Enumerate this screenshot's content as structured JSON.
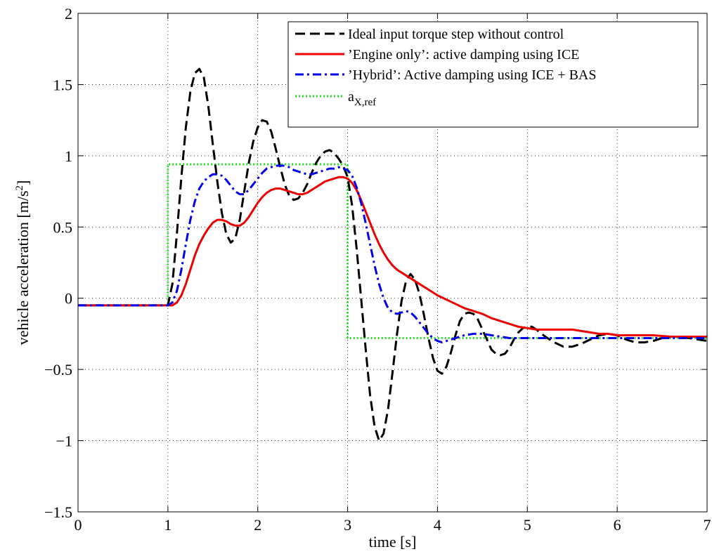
{
  "chart_data": {
    "type": "line",
    "xlabel": "time [s]",
    "ylabel": "vehicle acceleration [m/s",
    "ylabel_sup": "2",
    "ylabel_end": "]",
    "xlim": [
      0,
      7
    ],
    "ylim": [
      -1.5,
      2
    ],
    "xticks": [
      0,
      1,
      2,
      3,
      4,
      5,
      6,
      7
    ],
    "xtick_labels": [
      "0",
      "1",
      "2",
      "3",
      "4",
      "5",
      "6",
      "7"
    ],
    "yticks": [
      -1.5,
      -1,
      -0.5,
      0,
      0.5,
      1,
      1.5,
      2
    ],
    "ytick_labels": [
      "−1.5",
      "−1",
      "−0.5",
      "0",
      "0.5",
      "1",
      "1.5",
      "2"
    ],
    "grid": true,
    "legend_position": "top-right",
    "series": [
      {
        "name": "Ideal input torque step without control",
        "color": "#000000",
        "style": "dashed",
        "points": [
          [
            0,
            -0.05
          ],
          [
            1.0,
            -0.05
          ],
          [
            1.05,
            0.1
          ],
          [
            1.1,
            0.45
          ],
          [
            1.15,
            0.85
          ],
          [
            1.2,
            1.2
          ],
          [
            1.25,
            1.45
          ],
          [
            1.3,
            1.58
          ],
          [
            1.35,
            1.61
          ],
          [
            1.4,
            1.55
          ],
          [
            1.45,
            1.35
          ],
          [
            1.5,
            1.08
          ],
          [
            1.55,
            0.82
          ],
          [
            1.6,
            0.6
          ],
          [
            1.65,
            0.45
          ],
          [
            1.7,
            0.39
          ],
          [
            1.75,
            0.42
          ],
          [
            1.8,
            0.55
          ],
          [
            1.85,
            0.75
          ],
          [
            1.9,
            0.95
          ],
          [
            1.95,
            1.1
          ],
          [
            2.0,
            1.2
          ],
          [
            2.05,
            1.25
          ],
          [
            2.1,
            1.24
          ],
          [
            2.15,
            1.17
          ],
          [
            2.2,
            1.05
          ],
          [
            2.25,
            0.92
          ],
          [
            2.3,
            0.8
          ],
          [
            2.35,
            0.72
          ],
          [
            2.4,
            0.69
          ],
          [
            2.45,
            0.7
          ],
          [
            2.5,
            0.74
          ],
          [
            2.55,
            0.8
          ],
          [
            2.6,
            0.88
          ],
          [
            2.65,
            0.95
          ],
          [
            2.7,
            1.0
          ],
          [
            2.75,
            1.03
          ],
          [
            2.8,
            1.04
          ],
          [
            2.85,
            1.02
          ],
          [
            2.9,
            0.98
          ],
          [
            2.95,
            0.93
          ],
          [
            3.0,
            0.85
          ],
          [
            3.05,
            0.65
          ],
          [
            3.1,
            0.35
          ],
          [
            3.15,
            0.0
          ],
          [
            3.2,
            -0.35
          ],
          [
            3.25,
            -0.68
          ],
          [
            3.3,
            -0.9
          ],
          [
            3.35,
            -1.0
          ],
          [
            3.4,
            -0.95
          ],
          [
            3.45,
            -0.78
          ],
          [
            3.5,
            -0.52
          ],
          [
            3.55,
            -0.25
          ],
          [
            3.6,
            -0.02
          ],
          [
            3.65,
            0.12
          ],
          [
            3.7,
            0.17
          ],
          [
            3.75,
            0.13
          ],
          [
            3.8,
            0.03
          ],
          [
            3.85,
            -0.12
          ],
          [
            3.9,
            -0.28
          ],
          [
            3.95,
            -0.42
          ],
          [
            4.0,
            -0.51
          ],
          [
            4.05,
            -0.53
          ],
          [
            4.1,
            -0.48
          ],
          [
            4.15,
            -0.38
          ],
          [
            4.2,
            -0.26
          ],
          [
            4.25,
            -0.16
          ],
          [
            4.3,
            -0.11
          ],
          [
            4.35,
            -0.1
          ],
          [
            4.4,
            -0.11
          ],
          [
            4.45,
            -0.15
          ],
          [
            4.5,
            -0.22
          ],
          [
            4.55,
            -0.29
          ],
          [
            4.6,
            -0.36
          ],
          [
            4.65,
            -0.39
          ],
          [
            4.7,
            -0.4
          ],
          [
            4.75,
            -0.39
          ],
          [
            4.8,
            -0.35
          ],
          [
            4.85,
            -0.29
          ],
          [
            4.9,
            -0.24
          ],
          [
            4.95,
            -0.21
          ],
          [
            5.0,
            -0.2
          ],
          [
            5.05,
            -0.2
          ],
          [
            5.1,
            -0.22
          ],
          [
            5.2,
            -0.27
          ],
          [
            5.3,
            -0.31
          ],
          [
            5.4,
            -0.34
          ],
          [
            5.5,
            -0.34
          ],
          [
            5.6,
            -0.32
          ],
          [
            5.7,
            -0.29
          ],
          [
            5.8,
            -0.26
          ],
          [
            5.9,
            -0.25
          ],
          [
            6.0,
            -0.26
          ],
          [
            6.1,
            -0.29
          ],
          [
            6.2,
            -0.31
          ],
          [
            6.3,
            -0.31
          ],
          [
            6.4,
            -0.3
          ],
          [
            6.5,
            -0.28
          ],
          [
            6.6,
            -0.27
          ],
          [
            6.7,
            -0.27
          ],
          [
            6.8,
            -0.28
          ],
          [
            6.9,
            -0.29
          ],
          [
            7.0,
            -0.3
          ]
        ]
      },
      {
        "name": "’Engine only’: active damping using ICE",
        "color": "#ee0000",
        "style": "solid",
        "points": [
          [
            0,
            -0.05
          ],
          [
            1.0,
            -0.05
          ],
          [
            1.05,
            -0.05
          ],
          [
            1.1,
            -0.03
          ],
          [
            1.15,
            0.02
          ],
          [
            1.2,
            0.1
          ],
          [
            1.25,
            0.2
          ],
          [
            1.3,
            0.3
          ],
          [
            1.35,
            0.38
          ],
          [
            1.4,
            0.44
          ],
          [
            1.45,
            0.49
          ],
          [
            1.5,
            0.53
          ],
          [
            1.55,
            0.55
          ],
          [
            1.6,
            0.55
          ],
          [
            1.65,
            0.54
          ],
          [
            1.7,
            0.52
          ],
          [
            1.75,
            0.51
          ],
          [
            1.8,
            0.51
          ],
          [
            1.85,
            0.53
          ],
          [
            1.9,
            0.57
          ],
          [
            1.95,
            0.62
          ],
          [
            2.0,
            0.67
          ],
          [
            2.05,
            0.71
          ],
          [
            2.1,
            0.74
          ],
          [
            2.15,
            0.76
          ],
          [
            2.2,
            0.77
          ],
          [
            2.25,
            0.77
          ],
          [
            2.3,
            0.76
          ],
          [
            2.35,
            0.75
          ],
          [
            2.4,
            0.74
          ],
          [
            2.45,
            0.73
          ],
          [
            2.5,
            0.73
          ],
          [
            2.55,
            0.74
          ],
          [
            2.6,
            0.76
          ],
          [
            2.65,
            0.78
          ],
          [
            2.7,
            0.8
          ],
          [
            2.75,
            0.82
          ],
          [
            2.8,
            0.83
          ],
          [
            2.85,
            0.84
          ],
          [
            2.9,
            0.85
          ],
          [
            2.95,
            0.85
          ],
          [
            3.0,
            0.84
          ],
          [
            3.05,
            0.81
          ],
          [
            3.1,
            0.76
          ],
          [
            3.15,
            0.69
          ],
          [
            3.2,
            0.61
          ],
          [
            3.25,
            0.53
          ],
          [
            3.3,
            0.45
          ],
          [
            3.35,
            0.38
          ],
          [
            3.4,
            0.32
          ],
          [
            3.45,
            0.27
          ],
          [
            3.5,
            0.23
          ],
          [
            3.55,
            0.2
          ],
          [
            3.6,
            0.18
          ],
          [
            3.7,
            0.14
          ],
          [
            3.8,
            0.1
          ],
          [
            3.9,
            0.06
          ],
          [
            4.0,
            0.02
          ],
          [
            4.1,
            -0.01
          ],
          [
            4.2,
            -0.04
          ],
          [
            4.3,
            -0.07
          ],
          [
            4.4,
            -0.09
          ],
          [
            4.5,
            -0.11
          ],
          [
            4.6,
            -0.14
          ],
          [
            4.7,
            -0.16
          ],
          [
            4.8,
            -0.18
          ],
          [
            4.9,
            -0.2
          ],
          [
            5.0,
            -0.21
          ],
          [
            5.1,
            -0.22
          ],
          [
            5.2,
            -0.22
          ],
          [
            5.3,
            -0.22
          ],
          [
            5.4,
            -0.22
          ],
          [
            5.5,
            -0.22
          ],
          [
            5.6,
            -0.23
          ],
          [
            5.7,
            -0.24
          ],
          [
            5.8,
            -0.25
          ],
          [
            5.9,
            -0.25
          ],
          [
            6.0,
            -0.26
          ],
          [
            6.2,
            -0.26
          ],
          [
            6.4,
            -0.26
          ],
          [
            6.6,
            -0.27
          ],
          [
            6.8,
            -0.27
          ],
          [
            7.0,
            -0.27
          ]
        ]
      },
      {
        "name": "’Hybrid’: Active damping using ICE + BAS",
        "color": "#0000ee",
        "style": "dashdot",
        "points": [
          [
            0,
            -0.05
          ],
          [
            1.0,
            -0.05
          ],
          [
            1.05,
            -0.03
          ],
          [
            1.1,
            0.05
          ],
          [
            1.15,
            0.2
          ],
          [
            1.2,
            0.38
          ],
          [
            1.25,
            0.55
          ],
          [
            1.3,
            0.68
          ],
          [
            1.35,
            0.77
          ],
          [
            1.4,
            0.82
          ],
          [
            1.45,
            0.85
          ],
          [
            1.5,
            0.87
          ],
          [
            1.55,
            0.87
          ],
          [
            1.6,
            0.86
          ],
          [
            1.65,
            0.83
          ],
          [
            1.7,
            0.79
          ],
          [
            1.75,
            0.75
          ],
          [
            1.8,
            0.73
          ],
          [
            1.85,
            0.73
          ],
          [
            1.9,
            0.76
          ],
          [
            1.95,
            0.8
          ],
          [
            2.0,
            0.84
          ],
          [
            2.05,
            0.88
          ],
          [
            2.1,
            0.91
          ],
          [
            2.15,
            0.92
          ],
          [
            2.2,
            0.93
          ],
          [
            2.25,
            0.93
          ],
          [
            2.3,
            0.93
          ],
          [
            2.35,
            0.92
          ],
          [
            2.4,
            0.9
          ],
          [
            2.45,
            0.89
          ],
          [
            2.5,
            0.88
          ],
          [
            2.55,
            0.87
          ],
          [
            2.6,
            0.87
          ],
          [
            2.65,
            0.88
          ],
          [
            2.7,
            0.89
          ],
          [
            2.75,
            0.9
          ],
          [
            2.8,
            0.91
          ],
          [
            2.85,
            0.91
          ],
          [
            2.9,
            0.92
          ],
          [
            2.95,
            0.91
          ],
          [
            3.0,
            0.9
          ],
          [
            3.05,
            0.86
          ],
          [
            3.1,
            0.78
          ],
          [
            3.15,
            0.67
          ],
          [
            3.2,
            0.53
          ],
          [
            3.25,
            0.38
          ],
          [
            3.3,
            0.23
          ],
          [
            3.35,
            0.1
          ],
          [
            3.4,
            0.0
          ],
          [
            3.45,
            -0.07
          ],
          [
            3.5,
            -0.1
          ],
          [
            3.55,
            -0.11
          ],
          [
            3.6,
            -0.1
          ],
          [
            3.65,
            -0.09
          ],
          [
            3.7,
            -0.1
          ],
          [
            3.75,
            -0.13
          ],
          [
            3.8,
            -0.17
          ],
          [
            3.85,
            -0.21
          ],
          [
            3.9,
            -0.25
          ],
          [
            3.95,
            -0.28
          ],
          [
            4.0,
            -0.3
          ],
          [
            4.05,
            -0.31
          ],
          [
            4.1,
            -0.3
          ],
          [
            4.2,
            -0.28
          ],
          [
            4.3,
            -0.26
          ],
          [
            4.4,
            -0.25
          ],
          [
            4.5,
            -0.25
          ],
          [
            4.6,
            -0.26
          ],
          [
            4.7,
            -0.27
          ],
          [
            4.8,
            -0.28
          ],
          [
            4.9,
            -0.28
          ],
          [
            5.0,
            -0.28
          ],
          [
            5.2,
            -0.28
          ],
          [
            5.5,
            -0.28
          ],
          [
            5.8,
            -0.28
          ],
          [
            6.0,
            -0.28
          ],
          [
            6.5,
            -0.28
          ],
          [
            7.0,
            -0.28
          ]
        ]
      },
      {
        "name": "a",
        "name_sub": "X,ref",
        "color": "#22dd22",
        "style": "dotted",
        "points": [
          [
            0,
            -0.05
          ],
          [
            1.0,
            -0.05
          ],
          [
            1.0,
            0.94
          ],
          [
            3.0,
            0.94
          ],
          [
            3.0,
            -0.28
          ],
          [
            7.0,
            -0.28
          ]
        ]
      }
    ]
  }
}
